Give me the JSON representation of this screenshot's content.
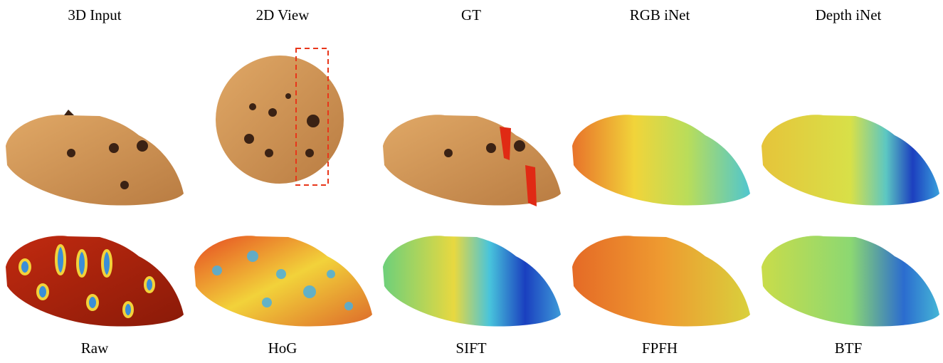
{
  "top_row": {
    "labels": [
      "3D Input",
      "2D View",
      "GT",
      "RGB iNet",
      "Depth iNet"
    ]
  },
  "bottom_row": {
    "labels": [
      "Raw",
      "HoG",
      "SIFT",
      "FPFH",
      "BTF"
    ]
  }
}
